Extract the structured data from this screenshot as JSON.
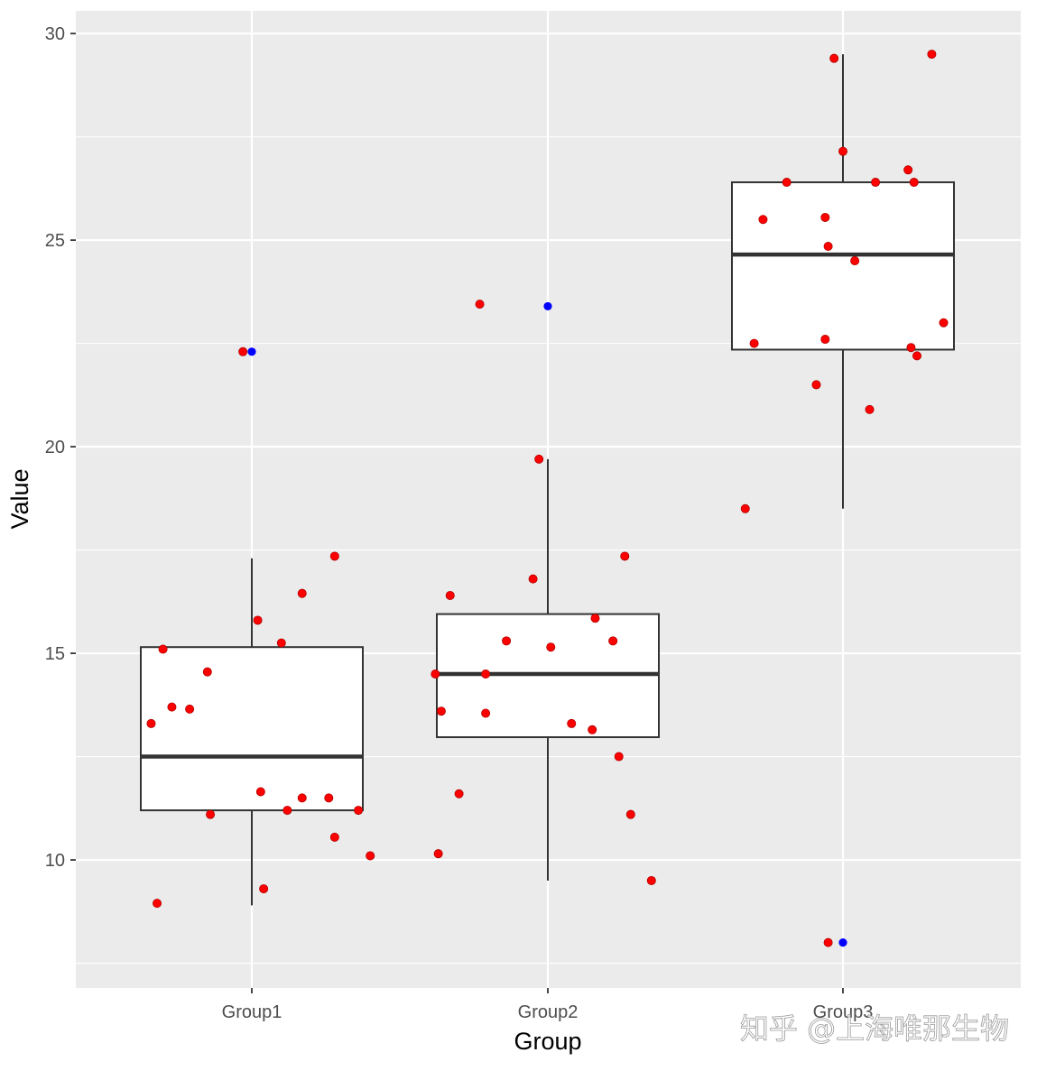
{
  "chart_data": {
    "type": "boxplot",
    "xlabel": "Group",
    "ylabel": "Value",
    "categories": [
      "Group1",
      "Group2",
      "Group3"
    ],
    "y_ticks": [
      10,
      15,
      20,
      25,
      30
    ],
    "ylim": [
      6.9,
      30.55
    ],
    "grid": true,
    "legend": "none",
    "colors": {
      "panel": "#ebebeb",
      "grid": "#ffffff",
      "box_fill": "#ffffff",
      "box_stroke": "#333333",
      "jitter_points": "#ff0000",
      "outlier_points": "#0000ff"
    },
    "boxes": [
      {
        "group": "Group1",
        "q1": 11.2,
        "median": 12.5,
        "q3": 15.15,
        "whisker_low": 8.9,
        "whisker_high": 17.3,
        "outliers": [
          22.3
        ]
      },
      {
        "group": "Group2",
        "q1": 12.97,
        "median": 14.5,
        "q3": 15.95,
        "whisker_low": 9.5,
        "whisker_high": 19.7,
        "outliers": [
          23.4
        ]
      },
      {
        "group": "Group3",
        "q1": 22.35,
        "median": 24.65,
        "q3": 26.4,
        "whisker_low": 18.5,
        "whisker_high": 29.5,
        "outliers": [
          8.0
        ]
      }
    ],
    "jitter_points": [
      {
        "group": "Group1",
        "points": [
          {
            "dx": -0.34,
            "y": 13.3
          },
          {
            "dx": -0.3,
            "y": 15.1
          },
          {
            "dx": -0.27,
            "y": 13.7
          },
          {
            "dx": -0.21,
            "y": 13.65
          },
          {
            "dx": -0.15,
            "y": 14.55
          },
          {
            "dx": -0.03,
            "y": 22.3
          },
          {
            "dx": 0.02,
            "y": 15.8
          },
          {
            "dx": 0.1,
            "y": 15.25
          },
          {
            "dx": 0.17,
            "y": 16.45
          },
          {
            "dx": 0.28,
            "y": 17.35
          },
          {
            "dx": -0.32,
            "y": 8.95
          },
          {
            "dx": -0.14,
            "y": 11.1
          },
          {
            "dx": 0.03,
            "y": 11.65
          },
          {
            "dx": 0.04,
            "y": 9.3
          },
          {
            "dx": 0.12,
            "y": 11.2
          },
          {
            "dx": 0.17,
            "y": 11.5
          },
          {
            "dx": 0.26,
            "y": 11.5
          },
          {
            "dx": 0.28,
            "y": 10.55
          },
          {
            "dx": 0.36,
            "y": 11.2
          },
          {
            "dx": 0.4,
            "y": 10.1
          }
        ]
      },
      {
        "group": "Group2",
        "points": [
          {
            "dx": -0.38,
            "y": 14.5
          },
          {
            "dx": -0.36,
            "y": 13.6
          },
          {
            "dx": -0.33,
            "y": 16.4
          },
          {
            "dx": -0.3,
            "y": 11.6
          },
          {
            "dx": -0.37,
            "y": 10.15
          },
          {
            "dx": -0.23,
            "y": 23.45
          },
          {
            "dx": -0.21,
            "y": 14.5
          },
          {
            "dx": -0.21,
            "y": 13.55
          },
          {
            "dx": -0.14,
            "y": 15.3
          },
          {
            "dx": -0.05,
            "y": 16.8
          },
          {
            "dx": -0.03,
            "y": 19.7
          },
          {
            "dx": 0.01,
            "y": 15.15
          },
          {
            "dx": 0.08,
            "y": 13.3
          },
          {
            "dx": 0.15,
            "y": 13.15
          },
          {
            "dx": 0.16,
            "y": 15.85
          },
          {
            "dx": 0.22,
            "y": 15.3
          },
          {
            "dx": 0.24,
            "y": 12.5
          },
          {
            "dx": 0.26,
            "y": 17.35
          },
          {
            "dx": 0.28,
            "y": 11.1
          },
          {
            "dx": 0.35,
            "y": 9.5
          }
        ]
      },
      {
        "group": "Group3",
        "points": [
          {
            "dx": -0.33,
            "y": 18.5
          },
          {
            "dx": -0.3,
            "y": 22.5
          },
          {
            "dx": -0.27,
            "y": 25.5
          },
          {
            "dx": -0.19,
            "y": 26.4
          },
          {
            "dx": -0.09,
            "y": 21.5
          },
          {
            "dx": -0.06,
            "y": 22.6
          },
          {
            "dx": -0.06,
            "y": 25.55
          },
          {
            "dx": -0.05,
            "y": 24.85
          },
          {
            "dx": -0.03,
            "y": 29.4
          },
          {
            "dx": 0.0,
            "y": 27.15
          },
          {
            "dx": 0.04,
            "y": 24.5
          },
          {
            "dx": 0.09,
            "y": 20.9
          },
          {
            "dx": 0.11,
            "y": 26.4
          },
          {
            "dx": 0.22,
            "y": 26.7
          },
          {
            "dx": 0.23,
            "y": 22.4
          },
          {
            "dx": 0.24,
            "y": 26.4
          },
          {
            "dx": 0.25,
            "y": 22.2
          },
          {
            "dx": 0.3,
            "y": 29.5
          },
          {
            "dx": 0.34,
            "y": 23.0
          },
          {
            "dx": -0.05,
            "y": 8.0
          }
        ]
      }
    ]
  },
  "watermark": "知乎 @上海唯那生物"
}
